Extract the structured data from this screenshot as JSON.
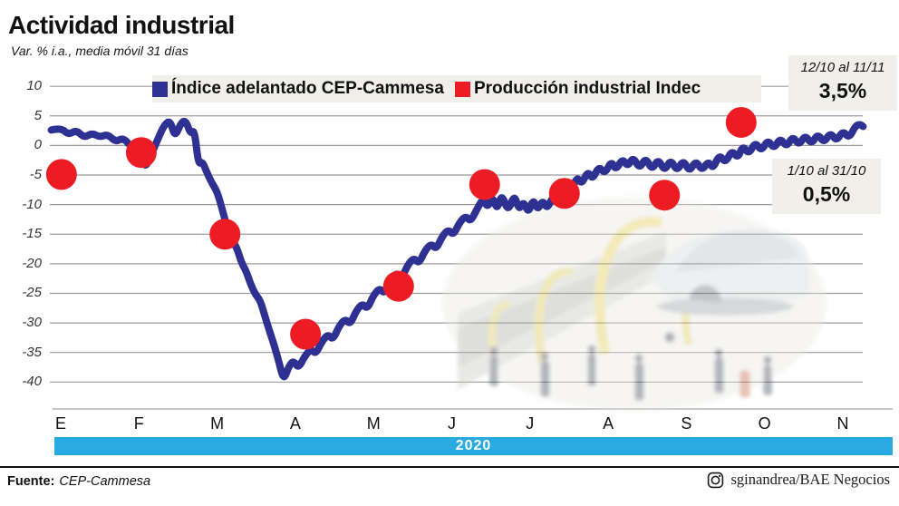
{
  "title": "Actividad industrial",
  "subtitle": "Var. % i.a., media móvil 31 días",
  "legend": {
    "series1": "Índice adelantado CEP-Cammesa",
    "series2": "Producción industrial Indec"
  },
  "annotations": [
    {
      "period": "12/10 al 11/11",
      "value": "3,5%"
    },
    {
      "period": "1/10 al 31/10",
      "value": "0,5%"
    }
  ],
  "year_banner": "2020",
  "footer": {
    "source_label": "Fuente:",
    "source_value": "CEP-Cammesa",
    "instagram_icon": "instagram-icon",
    "credit": "sginandrea/BAE Negocios"
  },
  "colors": {
    "line": "#2e3192",
    "dot": "#ed1c24",
    "banner": "#29abe2",
    "grid": "#9b9b9b",
    "axis": "#b3b3b3",
    "panel_bg": "#f1efe9"
  },
  "chart_data": {
    "type": "line+scatter",
    "title": "Actividad industrial",
    "ylabel": "Var. % i.a., media móvil 31 días",
    "ylim": [
      -40,
      10
    ],
    "ytick_step": 5,
    "yticks": [
      10,
      5,
      0,
      -5,
      -10,
      -15,
      -20,
      -25,
      -30,
      -35,
      -40
    ],
    "months": [
      "E",
      "F",
      "M",
      "A",
      "M",
      "J",
      "J",
      "A",
      "S",
      "O",
      "N"
    ],
    "grid": true,
    "legend_position": "top",
    "series": [
      {
        "name": "Índice adelantado CEP-Cammesa",
        "type": "line",
        "color": "#2e3192",
        "points": [
          [
            -0.12,
            2.6
          ],
          [
            0.0,
            3.0
          ],
          [
            0.1,
            1.8
          ],
          [
            0.2,
            2.6
          ],
          [
            0.3,
            1.3
          ],
          [
            0.4,
            2.1
          ],
          [
            0.5,
            1.4
          ],
          [
            0.6,
            1.9
          ],
          [
            0.7,
            0.6
          ],
          [
            0.8,
            1.3
          ],
          [
            0.9,
            -0.2
          ],
          [
            1.0,
            -1.0
          ],
          [
            1.08,
            -4.0
          ],
          [
            1.16,
            -1.4
          ],
          [
            1.24,
            1.0
          ],
          [
            1.32,
            3.4
          ],
          [
            1.4,
            4.3
          ],
          [
            1.46,
            1.3
          ],
          [
            1.54,
            3.9
          ],
          [
            1.6,
            4.2
          ],
          [
            1.66,
            1.9
          ],
          [
            1.71,
            2.7
          ],
          [
            1.76,
            -3.2
          ],
          [
            1.81,
            -2.7
          ],
          [
            1.86,
            -4.3
          ],
          [
            1.93,
            -6.3
          ],
          [
            2.0,
            -7.8
          ],
          [
            2.07,
            -11.0
          ],
          [
            2.13,
            -14.0
          ],
          [
            2.19,
            -16.2
          ],
          [
            2.25,
            -17.2
          ],
          [
            2.31,
            -19.8
          ],
          [
            2.37,
            -21.2
          ],
          [
            2.43,
            -23.5
          ],
          [
            2.49,
            -25.2
          ],
          [
            2.55,
            -26.2
          ],
          [
            2.61,
            -28.8
          ],
          [
            2.67,
            -31.4
          ],
          [
            2.73,
            -33.8
          ],
          [
            2.79,
            -36.6
          ],
          [
            2.85,
            -39.8
          ],
          [
            2.92,
            -37.2
          ],
          [
            2.98,
            -36.4
          ],
          [
            3.04,
            -37.7
          ],
          [
            3.12,
            -35.6
          ],
          [
            3.2,
            -34.4
          ],
          [
            3.26,
            -35.3
          ],
          [
            3.34,
            -33.1
          ],
          [
            3.42,
            -31.9
          ],
          [
            3.48,
            -32.9
          ],
          [
            3.56,
            -30.5
          ],
          [
            3.64,
            -29.3
          ],
          [
            3.7,
            -30.3
          ],
          [
            3.78,
            -27.9
          ],
          [
            3.86,
            -26.7
          ],
          [
            3.92,
            -27.7
          ],
          [
            4.0,
            -25.3
          ],
          [
            4.08,
            -24.1
          ],
          [
            4.14,
            -25.1
          ],
          [
            4.22,
            -22.7
          ],
          [
            4.3,
            -21.5
          ],
          [
            4.36,
            -22.5
          ],
          [
            4.44,
            -20.1
          ],
          [
            4.52,
            -19.0
          ],
          [
            4.58,
            -20.0
          ],
          [
            4.66,
            -17.7
          ],
          [
            4.74,
            -16.6
          ],
          [
            4.8,
            -17.6
          ],
          [
            4.88,
            -15.3
          ],
          [
            4.96,
            -14.2
          ],
          [
            5.02,
            -15.2
          ],
          [
            5.1,
            -13.0
          ],
          [
            5.18,
            -11.9
          ],
          [
            5.24,
            -12.9
          ],
          [
            5.32,
            -10.8
          ],
          [
            5.4,
            -8.9
          ],
          [
            5.46,
            -10.6
          ],
          [
            5.52,
            -8.5
          ],
          [
            5.58,
            -11.0
          ],
          [
            5.64,
            -8.1
          ],
          [
            5.72,
            -11.3
          ],
          [
            5.8,
            -8.2
          ],
          [
            5.86,
            -11.0
          ],
          [
            5.92,
            -9.4
          ],
          [
            5.98,
            -11.5
          ],
          [
            6.04,
            -9.0
          ],
          [
            6.1,
            -11.0
          ],
          [
            6.16,
            -9.2
          ],
          [
            6.22,
            -10.8
          ],
          [
            6.3,
            -8.4
          ],
          [
            6.36,
            -9.8
          ],
          [
            6.44,
            -7.0
          ],
          [
            6.52,
            -8.2
          ],
          [
            6.6,
            -5.2
          ],
          [
            6.66,
            -6.6
          ],
          [
            6.74,
            -4.3
          ],
          [
            6.8,
            -5.8
          ],
          [
            6.88,
            -3.5
          ],
          [
            6.96,
            -4.8
          ],
          [
            7.04,
            -2.6
          ],
          [
            7.1,
            -4.2
          ],
          [
            7.18,
            -2.2
          ],
          [
            7.25,
            -3.6
          ],
          [
            7.32,
            -1.9
          ],
          [
            7.4,
            -4.0
          ],
          [
            7.48,
            -2.0
          ],
          [
            7.56,
            -4.2
          ],
          [
            7.64,
            -2.2
          ],
          [
            7.72,
            -4.4
          ],
          [
            7.8,
            -2.3
          ],
          [
            7.88,
            -4.4
          ],
          [
            7.96,
            -2.4
          ],
          [
            8.04,
            -4.5
          ],
          [
            8.12,
            -2.5
          ],
          [
            8.2,
            -4.3
          ],
          [
            8.28,
            -2.6
          ],
          [
            8.34,
            -4.0
          ],
          [
            8.42,
            -1.5
          ],
          [
            8.5,
            -3.0
          ],
          [
            8.58,
            -0.8
          ],
          [
            8.66,
            -2.2
          ],
          [
            8.72,
            0.0
          ],
          [
            8.8,
            -1.5
          ],
          [
            8.88,
            0.6
          ],
          [
            8.96,
            -1.0
          ],
          [
            9.04,
            1.0
          ],
          [
            9.12,
            -0.6
          ],
          [
            9.2,
            1.3
          ],
          [
            9.28,
            -0.3
          ],
          [
            9.36,
            1.6
          ],
          [
            9.44,
            0.0
          ],
          [
            9.52,
            1.8
          ],
          [
            9.6,
            0.2
          ],
          [
            9.68,
            2.0
          ],
          [
            9.76,
            0.4
          ],
          [
            9.84,
            2.2
          ],
          [
            9.92,
            0.7
          ],
          [
            10.0,
            2.5
          ],
          [
            10.08,
            1.2
          ],
          [
            10.16,
            3.3
          ],
          [
            10.22,
            3.6
          ],
          [
            10.26,
            3.2
          ]
        ]
      },
      {
        "name": "Producción industrial Indec",
        "type": "scatter",
        "color": "#ed1c24",
        "points": [
          [
            0.01,
            -4.9
          ],
          [
            1.03,
            -1.2
          ],
          [
            2.1,
            -15.0
          ],
          [
            3.13,
            -31.9
          ],
          [
            4.32,
            -23.8
          ],
          [
            5.42,
            -6.6
          ],
          [
            6.44,
            -8.1
          ],
          [
            7.72,
            -8.4
          ],
          [
            8.7,
            3.9
          ]
        ]
      }
    ]
  }
}
